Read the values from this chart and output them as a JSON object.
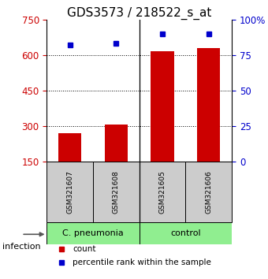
{
  "title": "GDS3573 / 218522_s_at",
  "samples": [
    "GSM321607",
    "GSM321608",
    "GSM321605",
    "GSM321606"
  ],
  "counts": [
    270,
    305,
    615,
    630
  ],
  "percentiles": [
    82,
    83,
    90,
    90
  ],
  "ylim_left": [
    150,
    750
  ],
  "ylim_right": [
    0,
    100
  ],
  "yticks_left": [
    150,
    300,
    450,
    600,
    750
  ],
  "yticks_right": [
    0,
    25,
    50,
    75,
    100
  ],
  "yticklabels_right": [
    "0",
    "25",
    "50",
    "75",
    "100%"
  ],
  "bar_color": "#cc0000",
  "dot_color": "#0000cc",
  "group1_label": "C. pneumonia",
  "group2_label": "control",
  "group_bg_color": "#90ee90",
  "sample_box_color": "#cccccc",
  "infection_label": "infection",
  "legend_count_label": "count",
  "legend_pct_label": "percentile rank within the sample",
  "bar_width": 0.5,
  "title_fontsize": 11,
  "tick_fontsize": 8.5,
  "sample_fontsize": 6.5,
  "group_fontsize": 8,
  "legend_fontsize": 7.5
}
